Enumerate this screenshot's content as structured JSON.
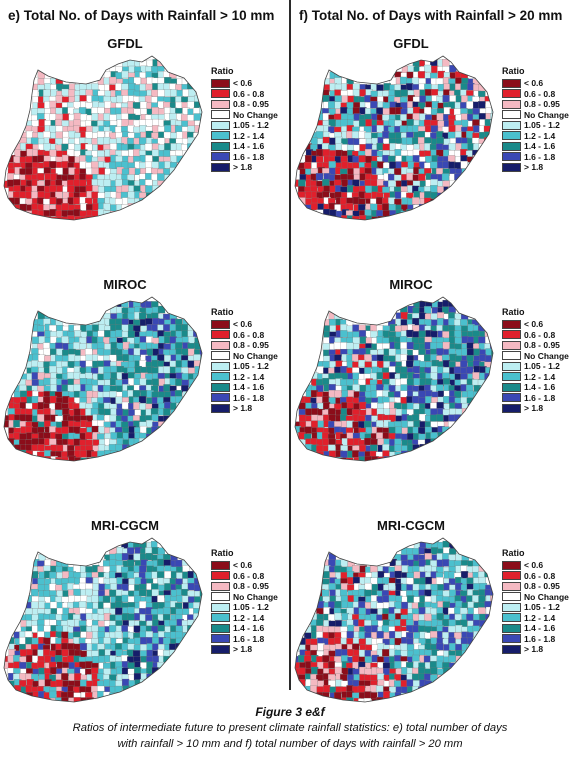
{
  "columns": [
    {
      "title": "e) Total No. of Days with Rainfall > 10 mm"
    },
    {
      "title": "f) Total No. of Days with Rainfall > 20 mm"
    }
  ],
  "models": [
    "GFDL",
    "MIROC",
    "MRI-CGCM"
  ],
  "legend": {
    "title": "Ratio",
    "items": [
      {
        "label": "< 0.6",
        "color": "#8b0d1a"
      },
      {
        "label": "0.6 - 0.8",
        "color": "#e0202c"
      },
      {
        "label": "0.8 - 0.95",
        "color": "#f4b9c2"
      },
      {
        "label": "No Change",
        "color": "#ffffff"
      },
      {
        "label": "1.05 - 1.2",
        "color": "#bdeef2"
      },
      {
        "label": "1.2 - 1.4",
        "color": "#4bc0ce"
      },
      {
        "label": "1.4 - 1.6",
        "color": "#1a8a8a"
      },
      {
        "label": "1.6 - 1.8",
        "color": "#3a48b4"
      },
      {
        "label": "> 1.8",
        "color": "#161d6a"
      }
    ]
  },
  "caption": {
    "title": "Figure 3 e&f",
    "line1": "Ratios of intermediate future to present climate rainfall statistics: e) total number of days",
    "line2": "with rainfall > 10 mm and f) total number of days with rainfall > 20 mm"
  }
}
